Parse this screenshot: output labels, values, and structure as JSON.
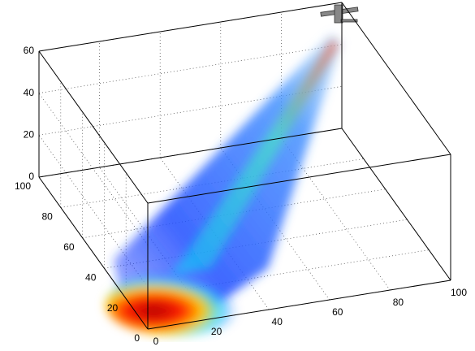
{
  "chart_data": {
    "type": "volume",
    "xlim": [
      0,
      100
    ],
    "ylim": [
      0,
      100
    ],
    "zlim": [
      0,
      60
    ],
    "xticks": [
      0,
      20,
      40,
      60,
      80,
      100
    ],
    "yticks": [
      0,
      20,
      40,
      60,
      80,
      100
    ],
    "zticks": [
      0,
      20,
      40,
      60
    ],
    "grid": true,
    "box": true
  }
}
